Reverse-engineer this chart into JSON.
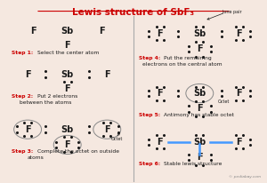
{
  "title": "Lewis structure of SbF₃",
  "bg_color": "#f5e8e0",
  "step_color": "#cc0000",
  "text_color": "#1a1a1a",
  "blue_line_color": "#4499ff",
  "pediabay_text": "© pediabay.com",
  "lone_pair_text": "lone pair",
  "octet_text": "Octet"
}
